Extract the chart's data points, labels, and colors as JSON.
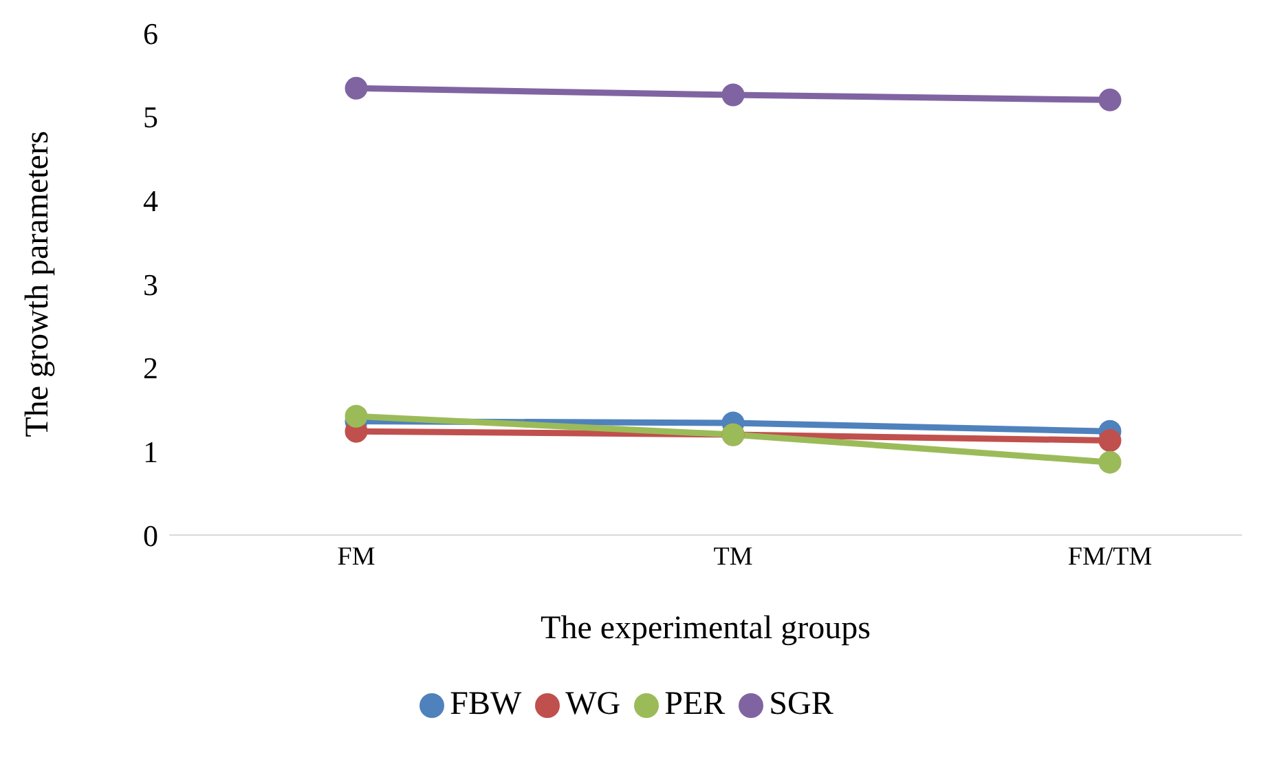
{
  "chart_data": {
    "type": "line",
    "xlabel": "The experimental groups",
    "ylabel": "The growth parameters",
    "categories": [
      "FM",
      "TM",
      "FM/TM"
    ],
    "series": [
      {
        "name": "FBW",
        "color": "#4f81bd",
        "values": [
          1.36,
          1.34,
          1.24
        ]
      },
      {
        "name": "WG",
        "color": "#c0504d",
        "values": [
          1.24,
          1.2,
          1.13
        ]
      },
      {
        "name": "PER",
        "color": "#9bbb59",
        "values": [
          1.42,
          1.2,
          0.87
        ]
      },
      {
        "name": "SGR",
        "color": "#8064a2",
        "values": [
          5.34,
          5.26,
          5.2
        ]
      }
    ],
    "ylim": [
      0,
      6
    ],
    "yticks": [
      0,
      1,
      2,
      3,
      4,
      5,
      6
    ],
    "grid": false,
    "legend": "bottom",
    "marker": "circle",
    "line_style": "solid"
  }
}
